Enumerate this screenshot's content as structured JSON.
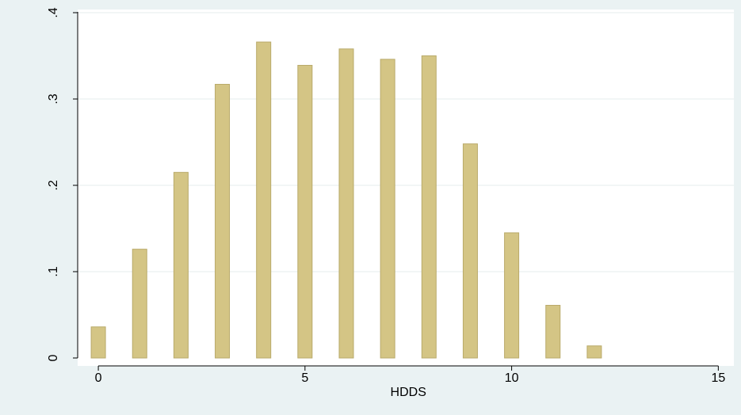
{
  "colors": {
    "background": "#eaf2f3",
    "plot_background": "#ffffff",
    "bar_fill": "#d4c585",
    "bar_stroke": "#b9aa6a",
    "grid": "#e6ecec",
    "axis": "#000000"
  },
  "chart_data": {
    "type": "bar",
    "title": "",
    "xlabel": "HDDS",
    "ylabel": "",
    "x": [
      0,
      1,
      2,
      3,
      4,
      5,
      6,
      7,
      8,
      9,
      10,
      11,
      12
    ],
    "values": [
      0.036,
      0.126,
      0.215,
      0.317,
      0.366,
      0.339,
      0.358,
      0.346,
      0.35,
      0.248,
      0.145,
      0.061,
      0.014
    ],
    "xlim": [
      -0.5,
      15.3
    ],
    "ylim": [
      0,
      0.4
    ],
    "x_ticks": [
      0,
      5,
      10,
      15
    ],
    "x_tick_labels": [
      "0",
      "5",
      "10",
      "15"
    ],
    "y_ticks": [
      0,
      0.1,
      0.2,
      0.3,
      0.4
    ],
    "y_tick_labels": [
      "0",
      ".1",
      ".2",
      ".3",
      ".4"
    ],
    "grid": true,
    "legend": "none"
  }
}
